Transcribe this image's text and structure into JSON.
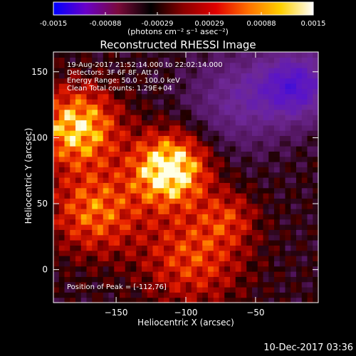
{
  "colorbar": {
    "tick_labels": [
      "-0.0015",
      "-0.00088",
      "-0.00029",
      "0.00029",
      "0.00088",
      "0.0015"
    ],
    "units_label": "(photons cm⁻² s⁻¹ asec⁻²)",
    "colors": [
      "#0000ff",
      "#6a00c8",
      "#7a0a3a",
      "#000000",
      "#8a0000",
      "#e00000",
      "#ff7000",
      "#ffd000",
      "#ffffff"
    ]
  },
  "chart_data": {
    "type": "heatmap",
    "title": "Reconstructed RHESSI Image",
    "xlabel": "Heliocentric X (arcsec)",
    "ylabel": "Heliocentric Y (arcsec)",
    "xlim": [
      -195,
      -5
    ],
    "ylim": [
      -25,
      165
    ],
    "xticks": [
      -150,
      -100,
      -50
    ],
    "yticks": [
      0,
      50,
      100,
      150
    ],
    "xtick_labels": [
      "−150",
      "−100",
      "−50"
    ],
    "ytick_labels": [
      "0",
      "50",
      "100",
      "150"
    ],
    "peak": [
      -112,
      76
    ],
    "sources": [
      {
        "x": -112,
        "y": 76,
        "sigma": 18,
        "amp": 1.0
      },
      {
        "x": -178,
        "y": 108,
        "sigma": 20,
        "amp": 0.8
      },
      {
        "x": -165,
        "y": 45,
        "sigma": 22,
        "amp": 0.55
      },
      {
        "x": -95,
        "y": 10,
        "sigma": 25,
        "amp": 0.45
      },
      {
        "x": -70,
        "y": 40,
        "sigma": 14,
        "amp": 0.3
      },
      {
        "x": -20,
        "y": 140,
        "sigma": 18,
        "amp": -0.6
      },
      {
        "x": -60,
        "y": 130,
        "sigma": 25,
        "amp": -0.35
      }
    ]
  },
  "info": {
    "time_range": "19-Aug-2017 21:52:14.000 to 22:02:14.000",
    "detectors": "Detectors: 3F 6F 8F, Att 0",
    "energy": "Energy Range: 50.0 - 100.0 keV",
    "clean": "Clean    Total counts: 1.29E+04",
    "peak_text": "Position of Peak = [-112,76]"
  },
  "timestamp": "10-Dec-2017 03:36"
}
